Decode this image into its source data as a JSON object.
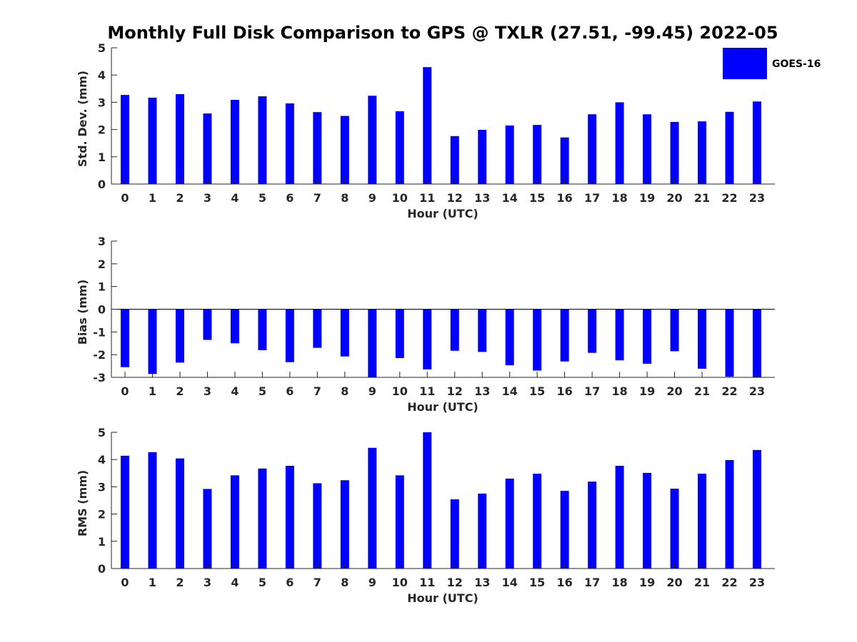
{
  "title": "Monthly Full Disk Comparison to GPS @ TXLR (27.51, -99.45) 2022-05",
  "legend": {
    "label": "GOES-16",
    "color": "#0000ff"
  },
  "chart_data": [
    {
      "type": "bar",
      "name": "std-dev",
      "xlabel": "Hour (UTC)",
      "ylabel": "Std. Dev. (mm)",
      "categories": [
        "0",
        "1",
        "2",
        "3",
        "4",
        "5",
        "6",
        "7",
        "8",
        "9",
        "10",
        "11",
        "12",
        "13",
        "14",
        "15",
        "16",
        "17",
        "18",
        "19",
        "20",
        "21",
        "22",
        "23"
      ],
      "ylim": [
        0,
        5
      ],
      "yticks": [
        0,
        1,
        2,
        3,
        4,
        5
      ],
      "series": [
        {
          "name": "GOES-16",
          "values": [
            3.27,
            3.17,
            3.3,
            2.59,
            3.09,
            3.22,
            2.96,
            2.64,
            2.5,
            3.24,
            2.67,
            4.29,
            1.76,
            1.99,
            2.15,
            2.17,
            1.71,
            2.56,
            3.0,
            2.56,
            2.28,
            2.3,
            2.65,
            3.03
          ]
        }
      ]
    },
    {
      "type": "bar",
      "name": "bias",
      "xlabel": "Hour (UTC)",
      "ylabel": "Bias (mm)",
      "categories": [
        "0",
        "1",
        "2",
        "3",
        "4",
        "5",
        "6",
        "7",
        "8",
        "9",
        "10",
        "11",
        "12",
        "13",
        "14",
        "15",
        "16",
        "17",
        "18",
        "19",
        "20",
        "21",
        "22",
        "23"
      ],
      "ylim": [
        -3,
        3
      ],
      "yticks": [
        -3,
        -2,
        -1,
        0,
        1,
        2,
        3
      ],
      "series": [
        {
          "name": "GOES-16",
          "values": [
            -2.55,
            -2.85,
            -2.35,
            -1.35,
            -1.5,
            -1.8,
            -2.33,
            -1.7,
            -2.08,
            -3.0,
            -2.15,
            -2.65,
            -1.83,
            -1.88,
            -2.47,
            -2.7,
            -2.3,
            -1.92,
            -2.25,
            -2.4,
            -1.85,
            -2.62,
            -2.97,
            -3.0
          ]
        }
      ]
    },
    {
      "type": "bar",
      "name": "rms",
      "xlabel": "Hour (UTC)",
      "ylabel": "RMS (mm)",
      "categories": [
        "0",
        "1",
        "2",
        "3",
        "4",
        "5",
        "6",
        "7",
        "8",
        "9",
        "10",
        "11",
        "12",
        "13",
        "14",
        "15",
        "16",
        "17",
        "18",
        "19",
        "20",
        "21",
        "22",
        "23"
      ],
      "ylim": [
        0,
        5
      ],
      "yticks": [
        0,
        1,
        2,
        3,
        4,
        5
      ],
      "series": [
        {
          "name": "GOES-16",
          "values": [
            4.14,
            4.27,
            4.04,
            2.92,
            3.42,
            3.67,
            3.77,
            3.13,
            3.24,
            4.43,
            3.42,
            5.0,
            2.54,
            2.75,
            3.3,
            3.48,
            2.85,
            3.19,
            3.77,
            3.51,
            2.93,
            3.48,
            3.98,
            4.35
          ]
        }
      ]
    }
  ]
}
